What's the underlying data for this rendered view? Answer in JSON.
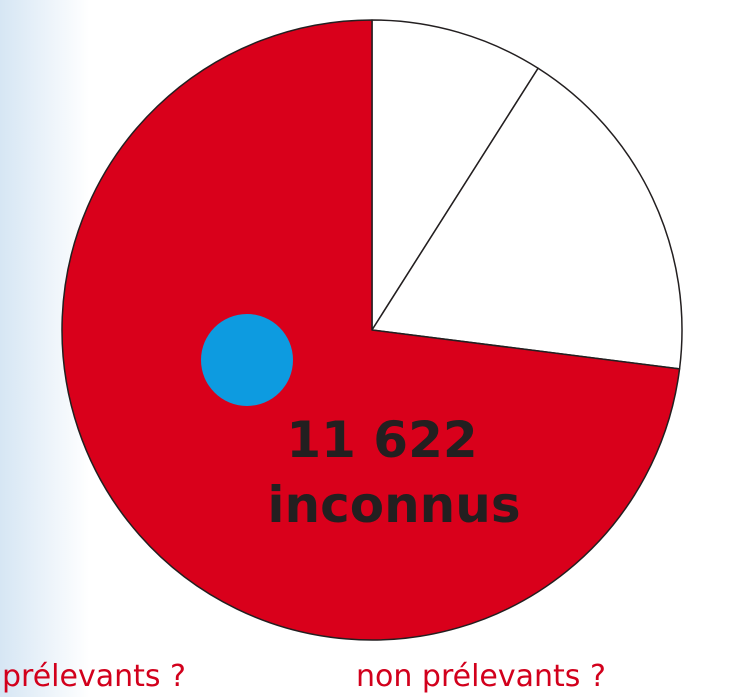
{
  "chart_data": {
    "type": "pie",
    "categories": [
      null,
      null,
      null
    ],
    "values": [
      9,
      18,
      73
    ],
    "colors": [
      "#ffffff",
      "#ffffff",
      "#d9001b"
    ],
    "annotations": [
      "11 622",
      "inconnus"
    ],
    "labels": [
      "prélevants ?",
      "non prélevants ?"
    ]
  }
}
